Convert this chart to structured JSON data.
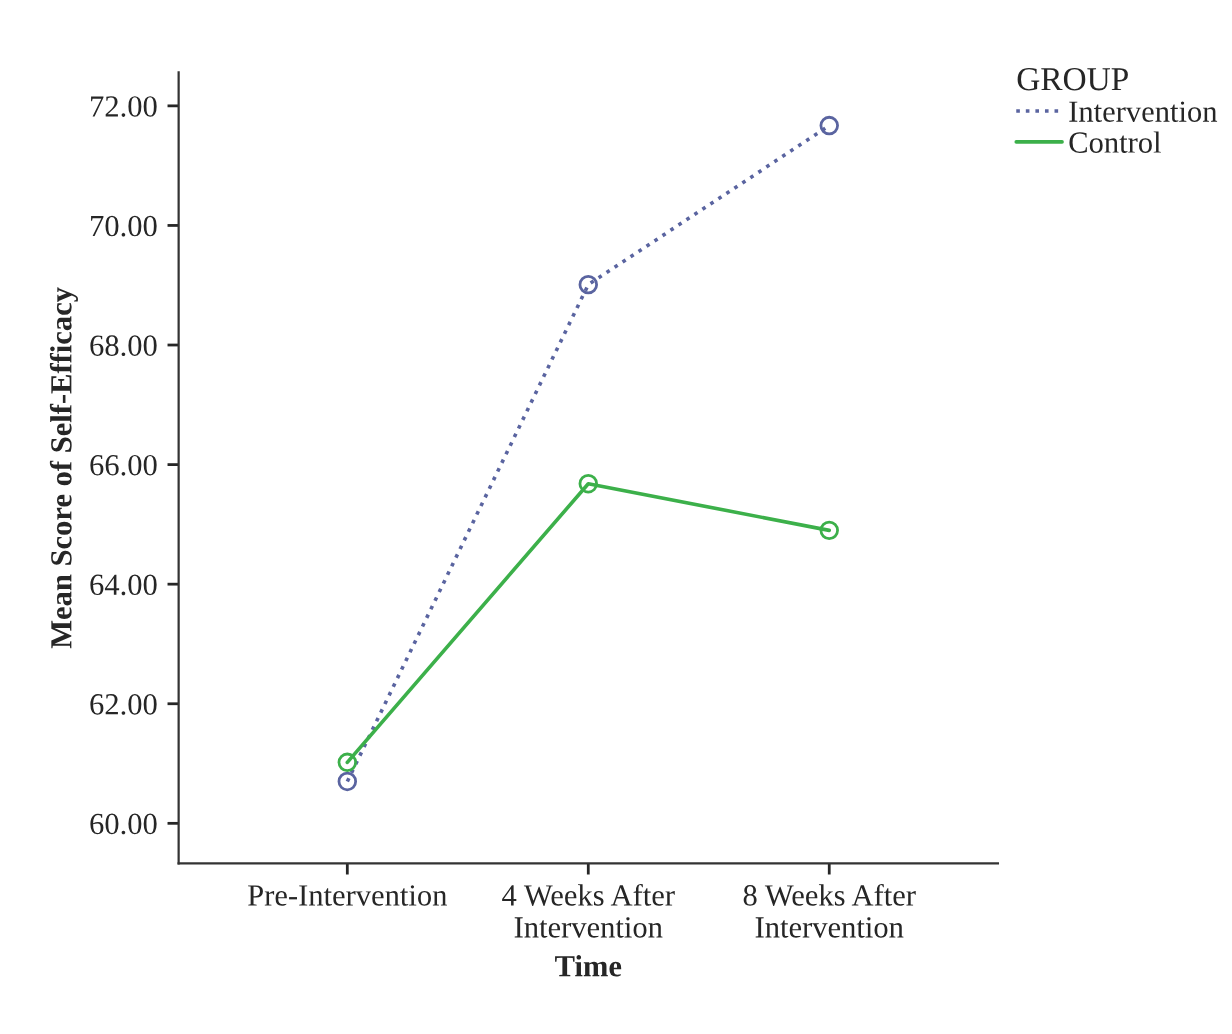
{
  "chart_data": {
    "type": "line",
    "xlabel": "Time",
    "ylabel": "Mean Score of Self-Efficacy",
    "legend_title": "GROUP",
    "categories": [
      "Pre-Intervention",
      "4 Weeks After\nIntervention",
      "8 Weeks After\nIntervention"
    ],
    "series": [
      {
        "name": "Intervention",
        "color": "#5a64a0",
        "values": [
          60.7,
          69.01,
          71.67
        ],
        "line_style": "dotted"
      },
      {
        "name": "Control",
        "color": "#3cb04a",
        "values": [
          61.02,
          65.68,
          64.9
        ],
        "line_style": "solid"
      }
    ],
    "ylim": [
      59.33,
      72.56
    ],
    "yticks": [
      {
        "value": 60,
        "label": "60.00"
      },
      {
        "value": 62,
        "label": "62.00"
      },
      {
        "value": 64,
        "label": "64.00"
      },
      {
        "value": 66,
        "label": "66.00"
      },
      {
        "value": 68,
        "label": "68.00"
      },
      {
        "value": 70,
        "label": "70.00"
      },
      {
        "value": 72,
        "label": "72.00"
      }
    ],
    "marker": "circle",
    "grid": false,
    "legend": "top right"
  }
}
